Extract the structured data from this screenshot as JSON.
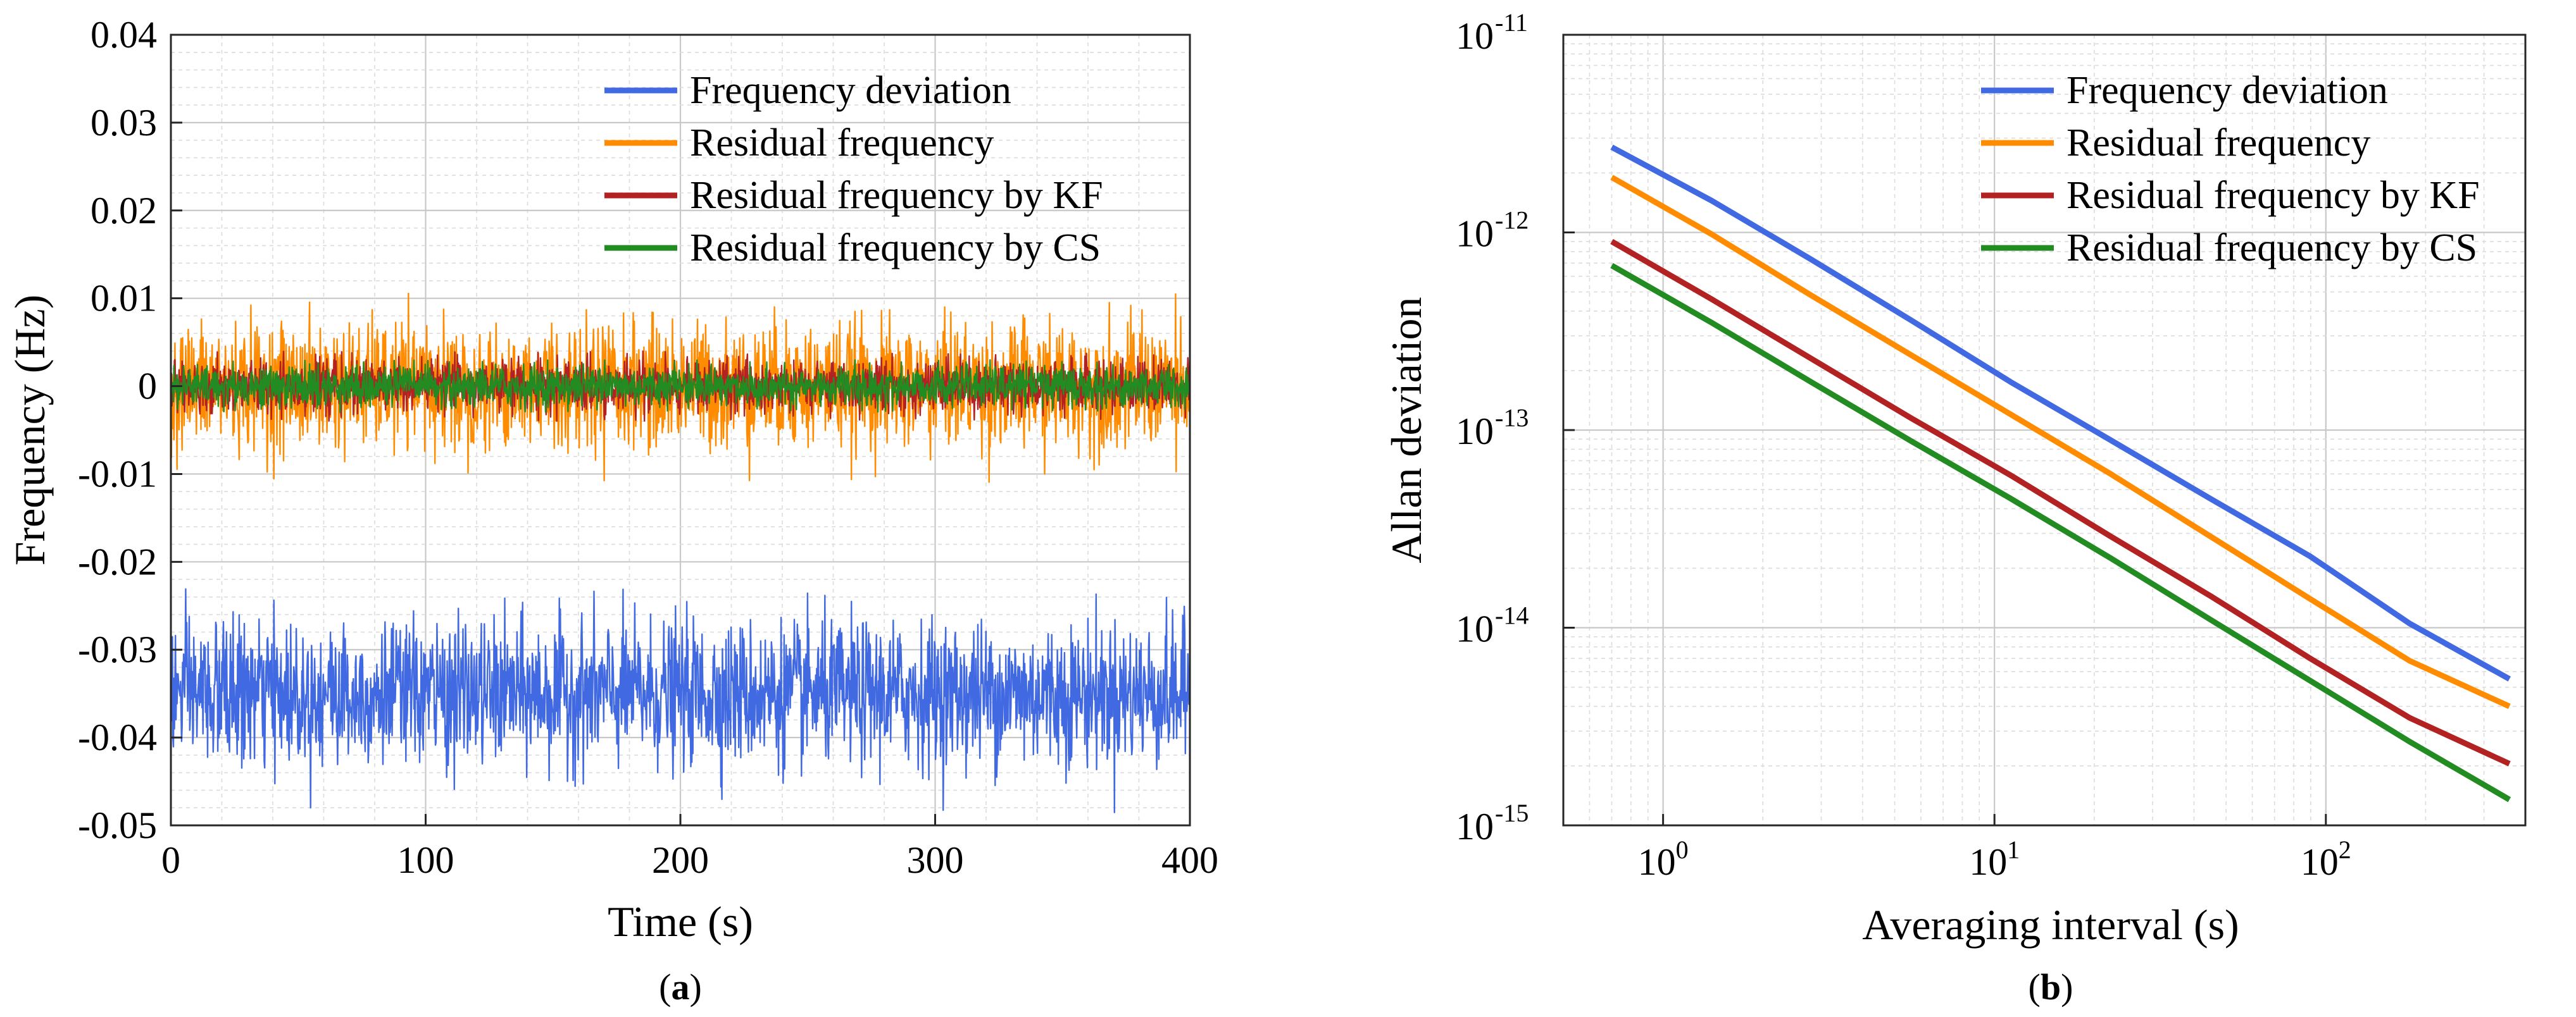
{
  "colors": {
    "frequency_deviation": "#4169e1",
    "residual_frequency": "#ff8c00",
    "residual_kf": "#b22222",
    "residual_cs": "#228b22"
  },
  "chart_data": [
    {
      "type": "line",
      "panel_label": "a",
      "xlabel": "Time (s)",
      "ylabel": "Frequency (Hz)",
      "xlim": [
        0,
        400
      ],
      "ylim": [
        -0.05,
        0.04
      ],
      "xticks": [
        0,
        100,
        200,
        300,
        400
      ],
      "xtick_labels": [
        "0",
        "100",
        "200",
        "300",
        "400"
      ],
      "yticks": [
        -0.05,
        -0.04,
        -0.03,
        -0.02,
        -0.01,
        0,
        0.01,
        0.02,
        0.03,
        0.04
      ],
      "ytick_labels": [
        "-0.05",
        "-0.04",
        "-0.03",
        "-0.02",
        "-0.01",
        "0",
        "0.01",
        "0.02",
        "0.03",
        "0.04"
      ],
      "grid": true,
      "legend_position": "top-right",
      "series": [
        {
          "name": "Frequency deviation",
          "color_key": "frequency_deviation",
          "mean": -0.035,
          "std": 0.004,
          "min": -0.05,
          "max": -0.021
        },
        {
          "name": "Residual frequency",
          "color_key": "residual_frequency",
          "mean": 0.0,
          "std": 0.0035,
          "min": -0.011,
          "max": 0.011
        },
        {
          "name": "Residual frequency by KF",
          "color_key": "residual_kf",
          "mean": 0.0,
          "std": 0.0015,
          "min": -0.004,
          "max": 0.004
        },
        {
          "name": "Residual frequency by CS",
          "color_key": "residual_cs",
          "mean": 0.0,
          "std": 0.0012,
          "min": -0.003,
          "max": 0.003
        }
      ]
    },
    {
      "type": "line",
      "panel_label": "b",
      "xlabel": "Averaging interval (s)",
      "ylabel": "Allan deviation",
      "xscale": "log",
      "yscale": "log",
      "xlim": [
        0.5,
        400
      ],
      "ylim": [
        1e-15,
        1e-11
      ],
      "xticks": [
        1,
        10,
        100
      ],
      "xtick_labels": [
        {
          "base": "10",
          "exp": "0"
        },
        {
          "base": "10",
          "exp": "1"
        },
        {
          "base": "10",
          "exp": "2"
        }
      ],
      "yticks": [
        1e-15,
        1e-14,
        1e-13,
        1e-12,
        1e-11
      ],
      "ytick_labels": [
        {
          "base": "10",
          "exp": "-15"
        },
        {
          "base": "10",
          "exp": "-14"
        },
        {
          "base": "10",
          "exp": "-13"
        },
        {
          "base": "10",
          "exp": "-12"
        },
        {
          "base": "10",
          "exp": "-11"
        }
      ],
      "grid": true,
      "legend_position": "top-right",
      "series": [
        {
          "name": "Frequency deviation",
          "color_key": "frequency_deviation",
          "x": [
            0.7,
            1.4,
            2.8,
            5.6,
            11.2,
            22.4,
            44.8,
            89.6,
            179,
            358
          ],
          "y": [
            2.7e-12,
            1.45e-12,
            7.3e-13,
            3.6e-13,
            1.75e-13,
            8.9e-14,
            4.5e-14,
            2.3e-14,
            1.05e-14,
            5.5e-15
          ]
        },
        {
          "name": "Residual frequency",
          "color_key": "residual_frequency",
          "x": [
            0.7,
            1.4,
            2.8,
            5.6,
            11.2,
            22.4,
            44.8,
            89.6,
            179,
            358
          ],
          "y": [
            1.9e-12,
            9.8e-13,
            4.8e-13,
            2.4e-13,
            1.2e-13,
            6e-14,
            2.9e-14,
            1.4e-14,
            6.8e-15,
            4e-15
          ]
        },
        {
          "name": "Residual frequency by KF",
          "color_key": "residual_kf",
          "x": [
            0.7,
            1.4,
            2.8,
            5.6,
            11.2,
            22.4,
            44.8,
            89.6,
            179,
            358
          ],
          "y": [
            9e-13,
            4.6e-13,
            2.3e-13,
            1.15e-13,
            5.9e-14,
            2.9e-14,
            1.45e-14,
            7e-15,
            3.5e-15,
            2.05e-15
          ]
        },
        {
          "name": "Residual frequency by CS",
          "color_key": "residual_cs",
          "x": [
            0.7,
            1.4,
            2.8,
            5.6,
            11.2,
            22.4,
            44.8,
            89.6,
            179,
            358
          ],
          "y": [
            6.8e-13,
            3.5e-13,
            1.75e-13,
            8.8e-14,
            4.5e-14,
            2.25e-14,
            1.1e-14,
            5.4e-15,
            2.65e-15,
            1.35e-15
          ]
        }
      ]
    }
  ]
}
